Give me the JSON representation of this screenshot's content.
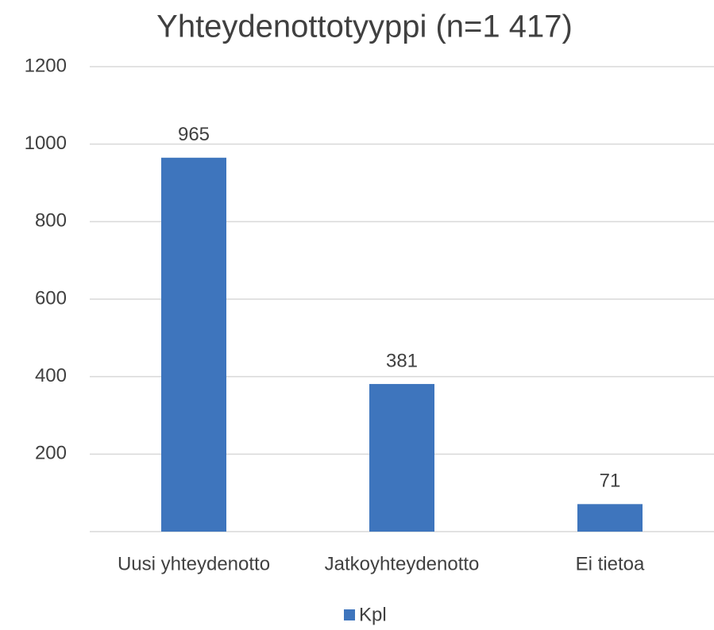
{
  "chart_data": {
    "type": "bar",
    "title": "Yhteydenottotyyppi (n=1 417)",
    "categories": [
      "Uusi yhteydenotto",
      "Jatkoyhteydenotto",
      "Ei tietoa"
    ],
    "series": [
      {
        "name": "Kpl",
        "color": "#3e75bd",
        "values": [
          965,
          381,
          71
        ]
      }
    ],
    "ylim": [
      0,
      1200
    ],
    "yticks": [
      200,
      400,
      600,
      800,
      1000,
      1200
    ],
    "grid": true,
    "legend": "bottom"
  }
}
